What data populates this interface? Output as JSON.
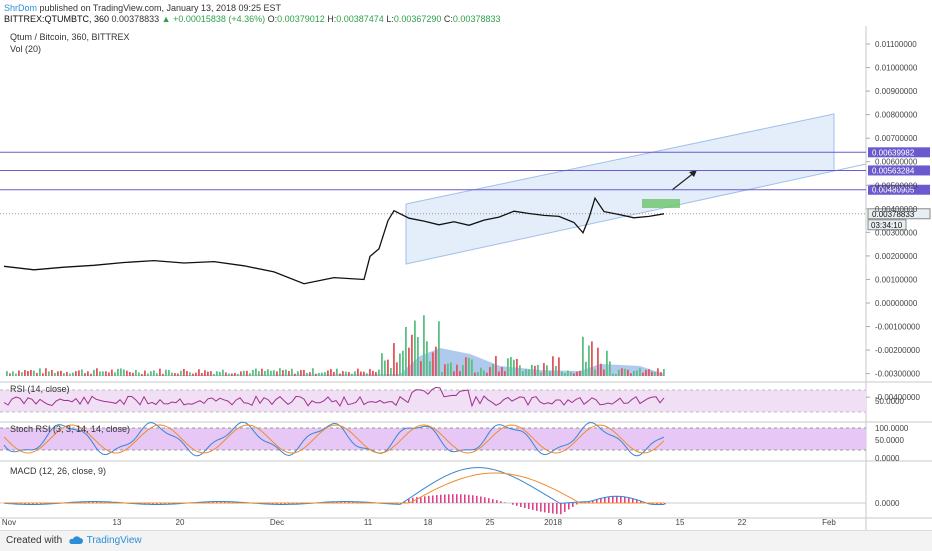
{
  "header": {
    "author": "ShrDom",
    "published_text": "published on TradingView.com, January 13, 2018 09:25 EST",
    "symbol_line": "BITTREX:QTUMBTC, 360",
    "last": "0.00378833",
    "change": "+0.00015838 (+4.36%)",
    "open_label": "O:",
    "open": "0.00379012",
    "high_label": "H:",
    "high": "0.00387474",
    "low_label": "L:",
    "low": "0.00367290",
    "close_label": "C:",
    "close": "0.00378833"
  },
  "footer": {
    "created_with": "Created with",
    "brand": "TradingView"
  },
  "colors": {
    "price_line": "#111111",
    "volume_up": "#5bbf84",
    "volume_down": "#e0575f",
    "volume_ma_fill": "#6f9fe0",
    "channel_fill": "#dbe8f8",
    "channel_stroke": "#9fc0e8",
    "hline": "#6a5acd",
    "rsi_line": "#a0308f",
    "rsi_band": "#f1dff5",
    "stoch_band": "#e6c7f5",
    "stoch_k": "#3a86d0",
    "stoch_d": "#f08c2c",
    "macd_line": "#3a86d0",
    "macd_signal": "#f08c2c",
    "macd_hist": "#e0408a",
    "target_box": "#6cc46c"
  },
  "chart_data": {
    "type": "line",
    "title": "Qtum / Bitcoin, 360, BITTREX",
    "volume_label": "Vol (20)",
    "x_tick_labels": [
      "Nov",
      "13",
      "20",
      "Dec",
      "11",
      "18",
      "25",
      "2018",
      "8",
      "15",
      "22",
      "Feb"
    ],
    "y_tick_labels": [
      "0.01100000",
      "0.01000000",
      "0.00900000",
      "0.00800000",
      "0.00700000",
      "0.00600000",
      "0.00500000",
      "0.00400000",
      "0.00300000",
      "0.00200000",
      "0.00100000",
      "0.00000000",
      "-0.00100000",
      "-0.00200000",
      "-0.00300000",
      "-0.00400000"
    ],
    "price_tags": [
      {
        "label": "0.00639982",
        "value": 0.0064
      },
      {
        "label": "0.00563284",
        "value": 0.00563
      },
      {
        "label": "0.00480905",
        "value": 0.00481
      },
      {
        "label": "0.00378833",
        "value": 0.00379,
        "current": true
      }
    ],
    "countdown": "03:34:10",
    "series": [
      {
        "name": "QTUMBTC",
        "points": [
          [
            0,
            0.00156
          ],
          [
            10,
            0.00141
          ],
          [
            20,
            0.00152
          ],
          [
            30,
            0.0016
          ],
          [
            40,
            0.00172
          ],
          [
            50,
            0.0018
          ],
          [
            60,
            0.0017
          ],
          [
            70,
            0.00176
          ],
          [
            80,
            0.00158
          ],
          [
            90,
            0.00132
          ],
          [
            100,
            0.00082
          ],
          [
            110,
            0.00108
          ],
          [
            120,
            0.001
          ],
          [
            122,
            0.00198
          ],
          [
            125,
            0.0023
          ],
          [
            128,
            0.0035
          ],
          [
            130,
            0.00392
          ],
          [
            135,
            0.0036
          ],
          [
            140,
            0.00348
          ],
          [
            145,
            0.00332
          ],
          [
            150,
            0.00345
          ],
          [
            155,
            0.0033
          ],
          [
            160,
            0.00352
          ],
          [
            165,
            0.00365
          ],
          [
            170,
            0.0039
          ],
          [
            175,
            0.0038
          ],
          [
            180,
            0.00372
          ],
          [
            185,
            0.00368
          ],
          [
            190,
            0.00342
          ],
          [
            193,
            0.00298
          ],
          [
            195,
            0.00362
          ],
          [
            197,
            0.00445
          ],
          [
            200,
            0.00388
          ],
          [
            205,
            0.00376
          ],
          [
            210,
            0.00362
          ],
          [
            215,
            0.00368
          ],
          [
            220,
            0.00379
          ]
        ]
      }
    ],
    "volume_ma_label": "Vol (20)",
    "indicators": [
      {
        "name": "RSI (14, close)",
        "level_label": "50.0000"
      },
      {
        "name": "Stoch RSI (3, 3, 14, 14, close)",
        "level_labels": [
          "100.0000",
          "50.0000",
          "0.0000"
        ]
      },
      {
        "name": "MACD (12, 26, close, 9)",
        "level_label": "0.0000"
      }
    ]
  }
}
